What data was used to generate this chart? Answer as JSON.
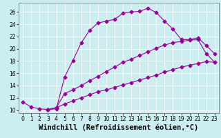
{
  "xlabel": "Windchill (Refroidissement éolien,°C)",
  "background_color": "#cceef0",
  "line_color": "#990099",
  "grid_color": "#aadddd",
  "xlim": [
    -0.5,
    23.5
  ],
  "ylim": [
    9.5,
    27.5
  ],
  "xticks": [
    0,
    1,
    2,
    3,
    4,
    5,
    6,
    7,
    8,
    9,
    10,
    11,
    12,
    13,
    14,
    15,
    16,
    17,
    18,
    19,
    20,
    21,
    22,
    23
  ],
  "yticks": [
    10,
    12,
    14,
    16,
    18,
    20,
    22,
    24,
    26
  ],
  "curve1_x": [
    0,
    1,
    2,
    3,
    4,
    5,
    6,
    7,
    8,
    9,
    10,
    11,
    12,
    13,
    14,
    15,
    16,
    17,
    18,
    19,
    20,
    21,
    22,
    23
  ],
  "curve1_y": [
    11.3,
    10.5,
    10.2,
    10.1,
    10.2,
    15.4,
    18.1,
    21.0,
    23.0,
    24.2,
    24.5,
    24.8,
    25.8,
    26.0,
    26.1,
    26.6,
    25.9,
    24.5,
    23.2,
    21.5,
    21.5,
    21.8,
    20.5,
    19.2
  ],
  "curve2_x": [
    3,
    4,
    5,
    6,
    7,
    8,
    9,
    10,
    11,
    12,
    13,
    14,
    15,
    16,
    17,
    18,
    19,
    20,
    21,
    22,
    23
  ],
  "curve2_y": [
    10.1,
    10.4,
    12.7,
    13.3,
    14.0,
    14.8,
    15.5,
    16.3,
    17.0,
    17.8,
    18.3,
    18.9,
    19.5,
    20.1,
    20.6,
    21.0,
    21.2,
    21.4,
    21.5,
    19.2,
    17.8
  ],
  "curve3_x": [
    3,
    4,
    5,
    6,
    7,
    8,
    9,
    10,
    11,
    12,
    13,
    14,
    15,
    16,
    17,
    18,
    19,
    20,
    21,
    22,
    23
  ],
  "curve3_y": [
    10.1,
    10.4,
    11.0,
    11.5,
    12.0,
    12.5,
    13.0,
    13.3,
    13.7,
    14.1,
    14.5,
    14.9,
    15.3,
    15.7,
    16.2,
    16.6,
    17.0,
    17.3,
    17.6,
    17.9,
    17.8
  ],
  "markersize": 2.5,
  "linewidth": 0.8,
  "tick_fontsize": 5.5,
  "label_fontsize": 7.5
}
